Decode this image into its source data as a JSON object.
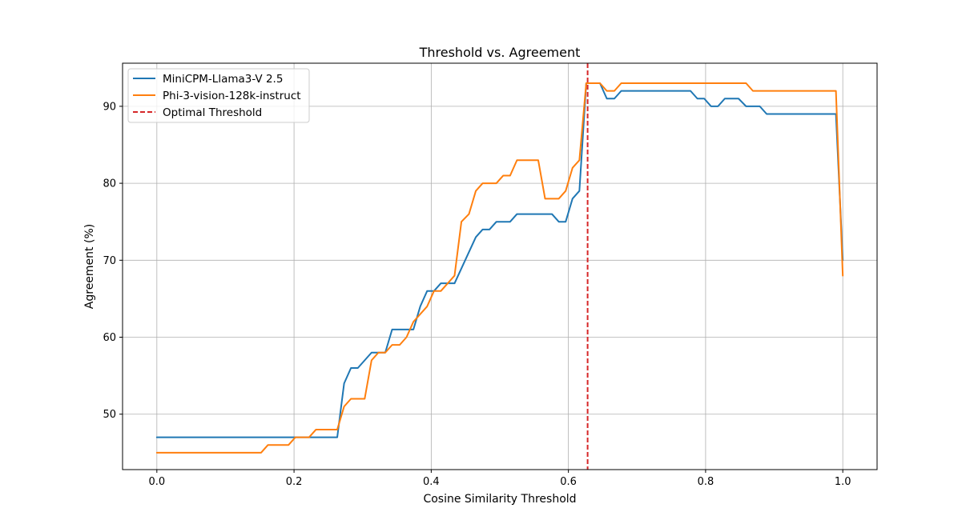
{
  "chart_data": {
    "type": "line",
    "title": "Threshold vs. Agreement",
    "xlabel": "Cosine Similarity Threshold",
    "ylabel": "Agreement (%)",
    "xlim": [
      -0.05,
      1.05
    ],
    "ylim": [
      42.8,
      95.6
    ],
    "xticks": [
      0.0,
      0.2,
      0.4,
      0.6,
      0.8,
      1.0
    ],
    "xtick_labels": [
      "0.0",
      "0.2",
      "0.4",
      "0.6",
      "0.8",
      "1.0"
    ],
    "yticks": [
      50,
      60,
      70,
      80,
      90
    ],
    "ytick_labels": [
      "50",
      "60",
      "70",
      "80",
      "90"
    ],
    "grid": true,
    "legend_position": "top-left",
    "series": [
      {
        "name": "MiniCPM-Llama3-V 2.5",
        "color": "#1f77b4",
        "points": [
          [
            0.0,
            47
          ],
          [
            0.2,
            47
          ],
          [
            0.263,
            47
          ],
          [
            0.273,
            54
          ],
          [
            0.283,
            56
          ],
          [
            0.293,
            56
          ],
          [
            0.303,
            57
          ],
          [
            0.313,
            58
          ],
          [
            0.333,
            58
          ],
          [
            0.343,
            61
          ],
          [
            0.364,
            61
          ],
          [
            0.374,
            61
          ],
          [
            0.384,
            64
          ],
          [
            0.394,
            66
          ],
          [
            0.404,
            66
          ],
          [
            0.414,
            67
          ],
          [
            0.434,
            67
          ],
          [
            0.465,
            73
          ],
          [
            0.475,
            74
          ],
          [
            0.485,
            74
          ],
          [
            0.495,
            75
          ],
          [
            0.515,
            75
          ],
          [
            0.525,
            76
          ],
          [
            0.576,
            76
          ],
          [
            0.586,
            75
          ],
          [
            0.596,
            75
          ],
          [
            0.606,
            78
          ],
          [
            0.616,
            79
          ],
          [
            0.626,
            93
          ],
          [
            0.646,
            93
          ],
          [
            0.656,
            91
          ],
          [
            0.667,
            91
          ],
          [
            0.677,
            92
          ],
          [
            0.778,
            92
          ],
          [
            0.788,
            91
          ],
          [
            0.798,
            91
          ],
          [
            0.808,
            90
          ],
          [
            0.818,
            90
          ],
          [
            0.828,
            91
          ],
          [
            0.848,
            91
          ],
          [
            0.859,
            90
          ],
          [
            0.879,
            90
          ],
          [
            0.889,
            89
          ],
          [
            0.99,
            89
          ],
          [
            1.0,
            70
          ]
        ]
      },
      {
        "name": "Phi-3-vision-128k-instruct",
        "color": "#ff7f0e",
        "points": [
          [
            0.0,
            45
          ],
          [
            0.152,
            45
          ],
          [
            0.162,
            46
          ],
          [
            0.192,
            46
          ],
          [
            0.202,
            47
          ],
          [
            0.222,
            47
          ],
          [
            0.232,
            48
          ],
          [
            0.263,
            48
          ],
          [
            0.273,
            51
          ],
          [
            0.283,
            52
          ],
          [
            0.303,
            52
          ],
          [
            0.313,
            57
          ],
          [
            0.323,
            58
          ],
          [
            0.333,
            58
          ],
          [
            0.343,
            59
          ],
          [
            0.354,
            59
          ],
          [
            0.364,
            60
          ],
          [
            0.374,
            62
          ],
          [
            0.394,
            64
          ],
          [
            0.404,
            66
          ],
          [
            0.414,
            66
          ],
          [
            0.434,
            68
          ],
          [
            0.444,
            75
          ],
          [
            0.455,
            76
          ],
          [
            0.465,
            79
          ],
          [
            0.475,
            80
          ],
          [
            0.495,
            80
          ],
          [
            0.505,
            81
          ],
          [
            0.515,
            81
          ],
          [
            0.525,
            83
          ],
          [
            0.556,
            83
          ],
          [
            0.566,
            78
          ],
          [
            0.586,
            78
          ],
          [
            0.596,
            79
          ],
          [
            0.606,
            82
          ],
          [
            0.616,
            83
          ],
          [
            0.626,
            93
          ],
          [
            0.646,
            93
          ],
          [
            0.656,
            92
          ],
          [
            0.667,
            92
          ],
          [
            0.677,
            93
          ],
          [
            0.859,
            93
          ],
          [
            0.869,
            92
          ],
          [
            0.99,
            92
          ],
          [
            1.0,
            68
          ]
        ]
      }
    ],
    "annotations": [
      {
        "name": "Optimal Threshold",
        "type": "vertical-line",
        "x": 0.628,
        "color": "#d62728",
        "style": "dashed"
      }
    ]
  }
}
